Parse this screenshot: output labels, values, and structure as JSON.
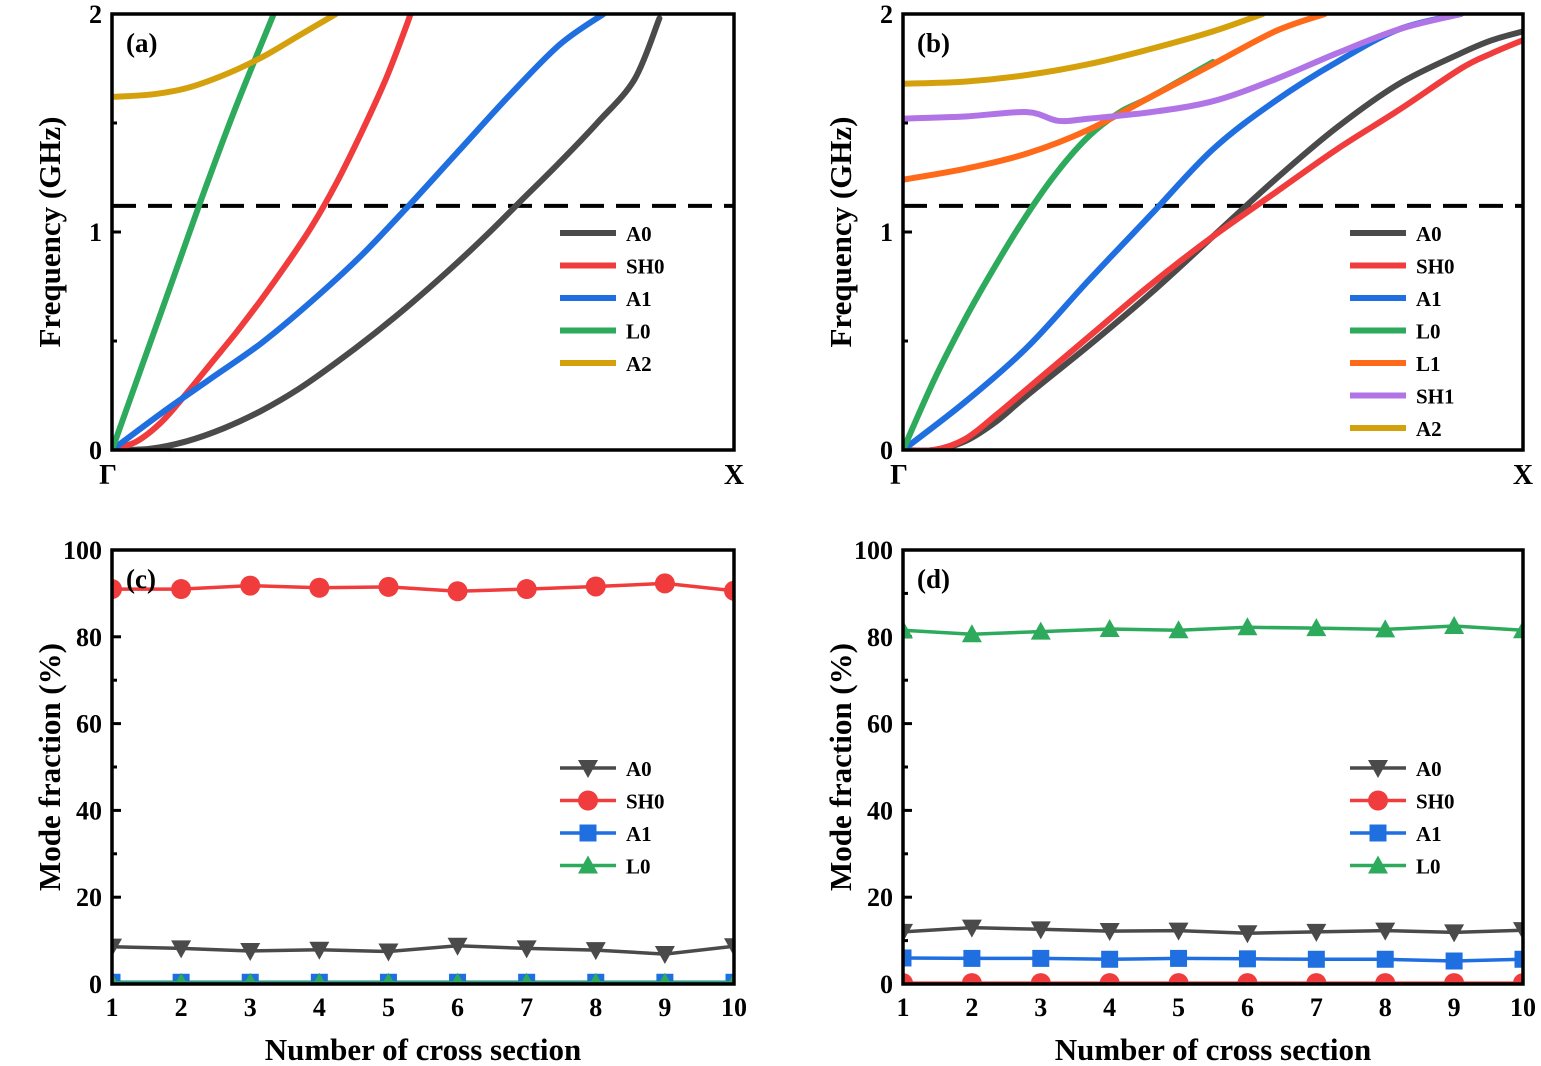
{
  "chart_data": [
    {
      "id": "a",
      "type": "line",
      "panel_label": "(a)",
      "ylabel": "Frequency (GHz)",
      "xlabel": "",
      "x_tick_labels": [
        "Γ",
        "X"
      ],
      "xlim": [
        0,
        1
      ],
      "ylim": [
        0,
        2
      ],
      "yticks": [
        0,
        1,
        2
      ],
      "reference_line": {
        "y": 1.12,
        "style": "dashed"
      },
      "legend": {
        "position": "middle-right"
      },
      "series": [
        {
          "name": "A0",
          "color": "#4a4a4a",
          "x": [
            0.0,
            0.06,
            0.12,
            0.18,
            0.24,
            0.3,
            0.36,
            0.42,
            0.48,
            0.54,
            0.6,
            0.66,
            0.72,
            0.78,
            0.84,
            0.88
          ],
          "y": [
            0.0,
            0.005,
            0.04,
            0.1,
            0.18,
            0.28,
            0.4,
            0.53,
            0.67,
            0.82,
            0.98,
            1.15,
            1.32,
            1.5,
            1.7,
            1.98
          ]
        },
        {
          "name": "SH0",
          "color": "#f03c3c",
          "x": [
            0.0,
            0.04,
            0.08,
            0.12,
            0.16,
            0.2,
            0.24,
            0.28,
            0.32,
            0.36,
            0.4,
            0.44,
            0.47,
            0.48
          ],
          "y": [
            0.0,
            0.04,
            0.13,
            0.26,
            0.4,
            0.54,
            0.69,
            0.85,
            1.02,
            1.22,
            1.45,
            1.7,
            1.92,
            2.0
          ]
        },
        {
          "name": "A1",
          "color": "#1f6fe0",
          "x": [
            0.0,
            0.08,
            0.16,
            0.24,
            0.32,
            0.4,
            0.48,
            0.56,
            0.64,
            0.72,
            0.79
          ],
          "y": [
            0.0,
            0.17,
            0.33,
            0.49,
            0.68,
            0.89,
            1.13,
            1.38,
            1.63,
            1.86,
            2.0
          ]
        },
        {
          "name": "L0",
          "color": "#2eaa5c",
          "x": [
            0.0,
            0.05,
            0.1,
            0.15,
            0.2,
            0.26
          ],
          "y": [
            0.0,
            0.4,
            0.8,
            1.2,
            1.58,
            2.0
          ]
        },
        {
          "name": "A2",
          "color": "#d4a10c",
          "x": [
            0.0,
            0.06,
            0.12,
            0.18,
            0.24,
            0.3,
            0.36
          ],
          "y": [
            1.62,
            1.63,
            1.66,
            1.72,
            1.8,
            1.9,
            2.0
          ]
        }
      ]
    },
    {
      "id": "b",
      "type": "line",
      "panel_label": "(b)",
      "ylabel": "Frequency (GHz)",
      "xlabel": "",
      "x_tick_labels": [
        "Γ",
        "X"
      ],
      "xlim": [
        0,
        1
      ],
      "ylim": [
        0,
        2
      ],
      "yticks": [
        0,
        1,
        2
      ],
      "reference_line": {
        "y": 1.12,
        "style": "dashed"
      },
      "legend": {
        "position": "bottom-right"
      },
      "series": [
        {
          "name": "A0",
          "color": "#4a4a4a",
          "x": [
            0.0,
            0.05,
            0.1,
            0.15,
            0.2,
            0.3,
            0.4,
            0.5,
            0.6,
            0.7,
            0.8,
            0.9,
            0.95,
            1.0
          ],
          "y": [
            0.0,
            0.0,
            0.04,
            0.13,
            0.25,
            0.48,
            0.72,
            0.98,
            1.24,
            1.48,
            1.68,
            1.82,
            1.88,
            1.92
          ]
        },
        {
          "name": "SH0",
          "color": "#f03c3c",
          "x": [
            0.0,
            0.05,
            0.1,
            0.15,
            0.2,
            0.3,
            0.4,
            0.5,
            0.6,
            0.7,
            0.8,
            0.9,
            0.95,
            1.0
          ],
          "y": [
            0.0,
            0.0,
            0.05,
            0.16,
            0.28,
            0.52,
            0.76,
            0.98,
            1.18,
            1.38,
            1.56,
            1.75,
            1.82,
            1.88
          ]
        },
        {
          "name": "A1",
          "color": "#1f6fe0",
          "x": [
            0.0,
            0.1,
            0.2,
            0.3,
            0.4,
            0.5,
            0.6,
            0.7,
            0.8,
            0.9
          ],
          "y": [
            0.0,
            0.22,
            0.47,
            0.78,
            1.08,
            1.38,
            1.6,
            1.78,
            1.93,
            2.0
          ]
        },
        {
          "name": "L0",
          "color": "#2eaa5c",
          "x": [
            0.0,
            0.05,
            0.1,
            0.15,
            0.2,
            0.25,
            0.3,
            0.35,
            0.4,
            0.5
          ],
          "y": [
            0.0,
            0.32,
            0.6,
            0.85,
            1.08,
            1.28,
            1.44,
            1.55,
            1.62,
            1.78
          ]
        },
        {
          "name": "L1",
          "color": "#ff6a1a",
          "x": [
            0.0,
            0.1,
            0.2,
            0.3,
            0.4,
            0.5,
            0.6,
            0.68
          ],
          "y": [
            1.24,
            1.29,
            1.36,
            1.47,
            1.62,
            1.77,
            1.92,
            2.0
          ]
        },
        {
          "name": "SH1",
          "color": "#b074e6",
          "x": [
            0.0,
            0.1,
            0.2,
            0.25,
            0.3,
            0.4,
            0.5,
            0.6,
            0.7,
            0.8,
            0.9
          ],
          "y": [
            1.52,
            1.53,
            1.55,
            1.51,
            1.52,
            1.55,
            1.6,
            1.7,
            1.82,
            1.93,
            2.0
          ]
        },
        {
          "name": "A2",
          "color": "#d4a10c",
          "x": [
            0.0,
            0.1,
            0.2,
            0.3,
            0.4,
            0.5,
            0.58
          ],
          "y": [
            1.68,
            1.69,
            1.72,
            1.77,
            1.84,
            1.92,
            2.0
          ]
        }
      ]
    },
    {
      "id": "c",
      "type": "line",
      "panel_label": "(c)",
      "ylabel": "Mode fraction (%)",
      "xlabel": "Number of cross section",
      "xlim": [
        1,
        10
      ],
      "ylim": [
        0,
        100
      ],
      "xticks": [
        1,
        2,
        3,
        4,
        5,
        6,
        7,
        8,
        9,
        10
      ],
      "yticks": [
        0,
        20,
        40,
        60,
        80,
        100
      ],
      "legend": {
        "position": "lower-right"
      },
      "x": [
        1,
        2,
        3,
        4,
        5,
        6,
        7,
        8,
        9,
        10
      ],
      "series": [
        {
          "name": "A0",
          "color": "#4a4a4a",
          "marker": "triangle-down",
          "values": [
            8.6,
            8.2,
            7.6,
            7.9,
            7.5,
            8.8,
            8.2,
            7.8,
            6.9,
            8.7
          ]
        },
        {
          "name": "SH0",
          "color": "#f03c3c",
          "marker": "circle",
          "values": [
            91.0,
            91.0,
            91.8,
            91.3,
            91.5,
            90.5,
            91.0,
            91.6,
            92.3,
            90.6
          ]
        },
        {
          "name": "A1",
          "color": "#1f6fe0",
          "marker": "square",
          "values": [
            0.4,
            0.4,
            0.4,
            0.4,
            0.4,
            0.4,
            0.4,
            0.4,
            0.4,
            0.4
          ]
        },
        {
          "name": "L0",
          "color": "#2eaa5c",
          "marker": "triangle-up",
          "values": [
            0.3,
            0.3,
            0.3,
            0.3,
            0.3,
            0.3,
            0.3,
            0.3,
            0.3,
            0.3
          ]
        }
      ]
    },
    {
      "id": "d",
      "type": "line",
      "panel_label": "(d)",
      "ylabel": "Mode fraction (%)",
      "xlabel": "Number of cross section",
      "xlim": [
        1,
        10
      ],
      "ylim": [
        0,
        100
      ],
      "xticks": [
        1,
        2,
        3,
        4,
        5,
        6,
        7,
        8,
        9,
        10
      ],
      "yticks": [
        0,
        20,
        40,
        60,
        80,
        100
      ],
      "legend": {
        "position": "lower-right"
      },
      "x": [
        1,
        2,
        3,
        4,
        5,
        6,
        7,
        8,
        9,
        10
      ],
      "series": [
        {
          "name": "A0",
          "color": "#4a4a4a",
          "marker": "triangle-down",
          "values": [
            12.0,
            13.0,
            12.6,
            12.2,
            12.3,
            11.7,
            12.0,
            12.3,
            11.9,
            12.4
          ]
        },
        {
          "name": "SH0",
          "color": "#f03c3c",
          "marker": "circle",
          "values": [
            0.2,
            0.2,
            0.2,
            0.2,
            0.2,
            0.2,
            0.2,
            0.2,
            0.2,
            0.2
          ]
        },
        {
          "name": "A1",
          "color": "#1f6fe0",
          "marker": "square",
          "values": [
            6.0,
            5.9,
            5.9,
            5.7,
            5.9,
            5.8,
            5.7,
            5.7,
            5.3,
            5.7
          ]
        },
        {
          "name": "L0",
          "color": "#2eaa5c",
          "marker": "triangle-up",
          "values": [
            81.5,
            80.6,
            81.2,
            81.8,
            81.5,
            82.2,
            82.0,
            81.7,
            82.5,
            81.5
          ]
        }
      ]
    }
  ]
}
